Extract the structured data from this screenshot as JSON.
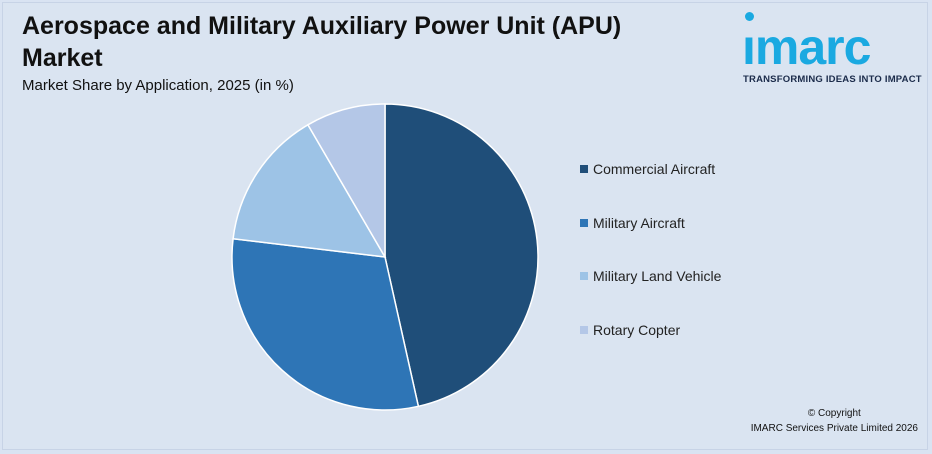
{
  "header": {
    "title": "Aerospace and Military Auxiliary Power Unit (APU) Market",
    "subtitle": "Market Share by Application, 2025 (in %)"
  },
  "logo": {
    "wordmark": "imarc",
    "tagline": "TRANSFORMING IDEAS INTO IMPACT",
    "color": "#1aa9e1"
  },
  "footer": {
    "copyright": "© Copyright",
    "company": "IMARC Services Private Limited 2026"
  },
  "chart_data": {
    "type": "pie",
    "title": "Aerospace and Military Auxiliary Power Unit (APU) Market",
    "subtitle": "Market Share by Application, 2025 (in %)",
    "legend_position": "right",
    "categories": [
      "Commercial Aircraft",
      "Military Aircraft",
      "Military Land Vehicle",
      "Rotary Copter"
    ],
    "values": [
      46.5,
      30.4,
      14.7,
      8.4
    ],
    "colors": [
      "#1f4e79",
      "#2e75b6",
      "#9dc3e6",
      "#b4c7e7"
    ]
  }
}
